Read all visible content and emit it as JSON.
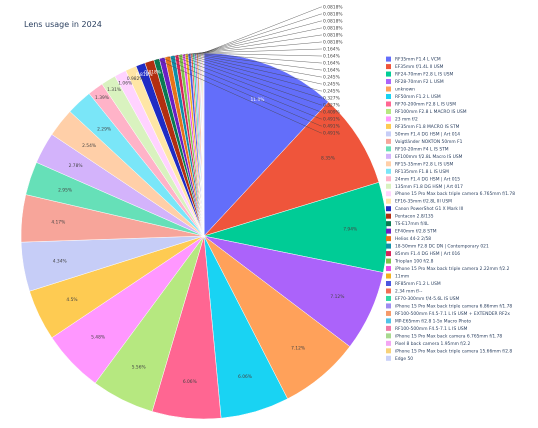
{
  "chart_data": {
    "type": "pie",
    "title": "Lens usage in 2024",
    "slices": [
      {
        "label": "RF35mm F1.4 L VCM",
        "value": 11.9,
        "color": "#636efa",
        "text": "11.9%"
      },
      {
        "label": "EF35mm f/1.4L II USM",
        "value": 8.35,
        "color": "#ef553b",
        "text": "8.35%"
      },
      {
        "label": "RF24-70mm F2.8 L IS USM",
        "value": 7.94,
        "color": "#00cc96",
        "text": "7.94%"
      },
      {
        "label": "RF28-70mm F2 L USM",
        "value": 7.12,
        "color": "#ab63fa",
        "text": "7.12%"
      },
      {
        "label": "unknown",
        "value": 7.12,
        "color": "#ffa15a",
        "text": "7.12%"
      },
      {
        "label": "RF50mm F1.2 L USM",
        "value": 6.06,
        "color": "#19d3f3",
        "text": "6.06%"
      },
      {
        "label": "RF70-200mm F2.8 L IS USM",
        "value": 6.06,
        "color": "#ff6692",
        "text": "6.06%"
      },
      {
        "label": "RF100mm F2.8 L MACRO IS USM",
        "value": 5.56,
        "color": "#b6e880",
        "text": "5.56%"
      },
      {
        "label": "23 mm f/2",
        "value": 5.48,
        "color": "#ff97ff",
        "text": "5.48%"
      },
      {
        "label": "RF35mm F1.8 MACRO IS STM",
        "value": 4.5,
        "color": "#fecb52",
        "text": "4.5%"
      },
      {
        "label": "50mm F1.4 DG HSM | Art 014",
        "value": 4.34,
        "color": "#c6cdf7",
        "text": "4.34%"
      },
      {
        "label": "Voigtländer NOKTON 50mm F1",
        "value": 4.17,
        "color": "#f7a59a",
        "text": "4.17%"
      },
      {
        "label": "RF10-20mm F4 L IS STM",
        "value": 2.95,
        "color": "#66e0b8",
        "text": "2.95%"
      },
      {
        "label": "EF100mm f/2.8L Macro IS USM",
        "value": 2.78,
        "color": "#d3b3fb",
        "text": "2.78%"
      },
      {
        "label": "RF15-35mm F2.8 L IS USM",
        "value": 2.54,
        "color": "#ffcfa8",
        "text": "2.54%"
      },
      {
        "label": "RF135mm F1.8 L IS USM",
        "value": 2.29,
        "color": "#7ae6f8",
        "text": "2.29%"
      },
      {
        "label": "24mm F1.4 DG HSM | Art 015",
        "value": 1.39,
        "color": "#ffb3c8",
        "text": "1.39%"
      },
      {
        "label": "135mm F1.8 DG HSM | Art 017",
        "value": 1.31,
        "color": "#d9f2bf",
        "text": "1.31%"
      },
      {
        "label": "iPhone 15 Pro Max back triple camera 6.765mm f/1.78",
        "value": 1.06,
        "color": "#ffd3ff",
        "text": "1.06%"
      },
      {
        "label": "EF16-35mm f/2.8L III USM",
        "value": 0.982,
        "color": "#ffe6a6",
        "text": "0.982%"
      },
      {
        "label": "Canon PowerShot G1 X Mark III",
        "value": 0.818,
        "color": "#1f2bc4",
        "text": "0.818%"
      },
      {
        "label": "Pentacon 2.8/135",
        "value": 0.818,
        "color": "#b22e10",
        "text": "0.818%"
      },
      {
        "label": "TS-E17mm f/4L",
        "value": 0.491,
        "color": "#0a7a52",
        "text": "0.491%"
      },
      {
        "label": "EF40mm f/2.8 STM",
        "value": 0.491,
        "color": "#6a1fc4",
        "text": "0.491%"
      },
      {
        "label": "Helios 44-2 2/58",
        "value": 0.491,
        "color": "#e8731a",
        "text": "0.491%"
      },
      {
        "label": "18-50mm F2.8 DC DN | Contemporary 021",
        "value": 0.409,
        "color": "#0f8fa8",
        "text": "0.409%"
      },
      {
        "label": "85mm F1.4 DG HSM | Art 016",
        "value": 0.327,
        "color": "#d6245a",
        "text": "0.327%"
      },
      {
        "label": "Trioplan 100 f/2.8",
        "value": 0.327,
        "color": "#7fc44a",
        "text": "0.327%"
      },
      {
        "label": "iPhone 15 Pro Max back triple camera 2.22mm f/2.2",
        "value": 0.245,
        "color": "#e54ee5",
        "text": "0.245%"
      },
      {
        "label": "11mm",
        "value": 0.245,
        "color": "#f2b01e",
        "text": "0.245%"
      },
      {
        "label": "RF85mm F1.2 L USM",
        "value": 0.245,
        "color": "#4b57e0",
        "text": "0.245%"
      },
      {
        "label": "2.34 mm f/--",
        "value": 0.164,
        "color": "#f26e54",
        "text": "0.164%"
      },
      {
        "label": "EF70-300mm f/4-5.6L IS USM",
        "value": 0.164,
        "color": "#2fd9a4",
        "text": "0.164%"
      },
      {
        "label": "iPhone 15 Pro Max back triple camera 6.86mm f/1.78",
        "value": 0.164,
        "color": "#9e8cf0",
        "text": "0.164%"
      },
      {
        "label": "RF100-500mm F4.5-7.1 L IS USM + EXTENDER RF2x",
        "value": 0.164,
        "color": "#f59a6a",
        "text": "0.164%"
      },
      {
        "label": "MP-E65mm f/2.8 1-5x Macro Photo",
        "value": 0.0818,
        "color": "#4fc3e8",
        "text": "0.0818%"
      },
      {
        "label": "RF100-500mm F4.5-7.1 L IS USM",
        "value": 0.0818,
        "color": "#f07aa6",
        "text": "0.0818%"
      },
      {
        "label": "iPhone 15 Pro Max back camera 6.765mm f/1.78",
        "value": 0.0818,
        "color": "#a8d98f",
        "text": "0.0818%"
      },
      {
        "label": "Pixel 8 back camera 1.95mm f/2.2",
        "value": 0.0818,
        "color": "#f3a6f3",
        "text": "0.0818%"
      },
      {
        "label": "iPhone 15 Pro Max back triple camera 15.66mm f/2.8",
        "value": 0.0818,
        "color": "#f7d27a",
        "text": "0.0818%"
      },
      {
        "label": "Edge 50",
        "value": 0.0818,
        "color": "#c9d1f8",
        "text": "0.0818%"
      }
    ]
  }
}
